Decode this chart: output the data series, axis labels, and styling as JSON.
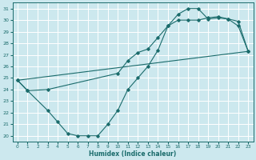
{
  "xlabel": "Humidex (Indice chaleur)",
  "background_color": "#cce8ee",
  "grid_color": "#ffffff",
  "line_color": "#1a6b6b",
  "xlim": [
    -0.5,
    23.5
  ],
  "ylim": [
    19.5,
    31.5
  ],
  "xticks": [
    0,
    1,
    2,
    3,
    4,
    5,
    6,
    7,
    8,
    9,
    10,
    11,
    12,
    13,
    14,
    15,
    16,
    17,
    18,
    19,
    20,
    21,
    22,
    23
  ],
  "yticks": [
    20,
    21,
    22,
    23,
    24,
    25,
    26,
    27,
    28,
    29,
    30,
    31
  ],
  "curve1_x": [
    0,
    1,
    3,
    4,
    5,
    6,
    7,
    8,
    9,
    10,
    11,
    12,
    13,
    14,
    15,
    16,
    17,
    18,
    19,
    20,
    21,
    22,
    23
  ],
  "curve1_y": [
    24.8,
    23.9,
    22.2,
    21.2,
    20.2,
    20.0,
    20.0,
    20.0,
    21.0,
    22.2,
    24.0,
    25.0,
    26.0,
    27.4,
    29.5,
    30.5,
    31.0,
    31.0,
    30.1,
    30.2,
    30.1,
    29.9,
    27.3
  ],
  "curve2_x": [
    0,
    1,
    3,
    10,
    11,
    12,
    13,
    14,
    15,
    16,
    17,
    18,
    19,
    20,
    21,
    22,
    23
  ],
  "curve2_y": [
    24.8,
    23.9,
    24.0,
    25.4,
    26.5,
    27.2,
    27.5,
    28.5,
    29.5,
    30.0,
    30.0,
    30.0,
    30.2,
    30.3,
    30.1,
    29.5,
    27.3
  ],
  "curve3_x": [
    0,
    23
  ],
  "curve3_y": [
    24.8,
    27.3
  ]
}
